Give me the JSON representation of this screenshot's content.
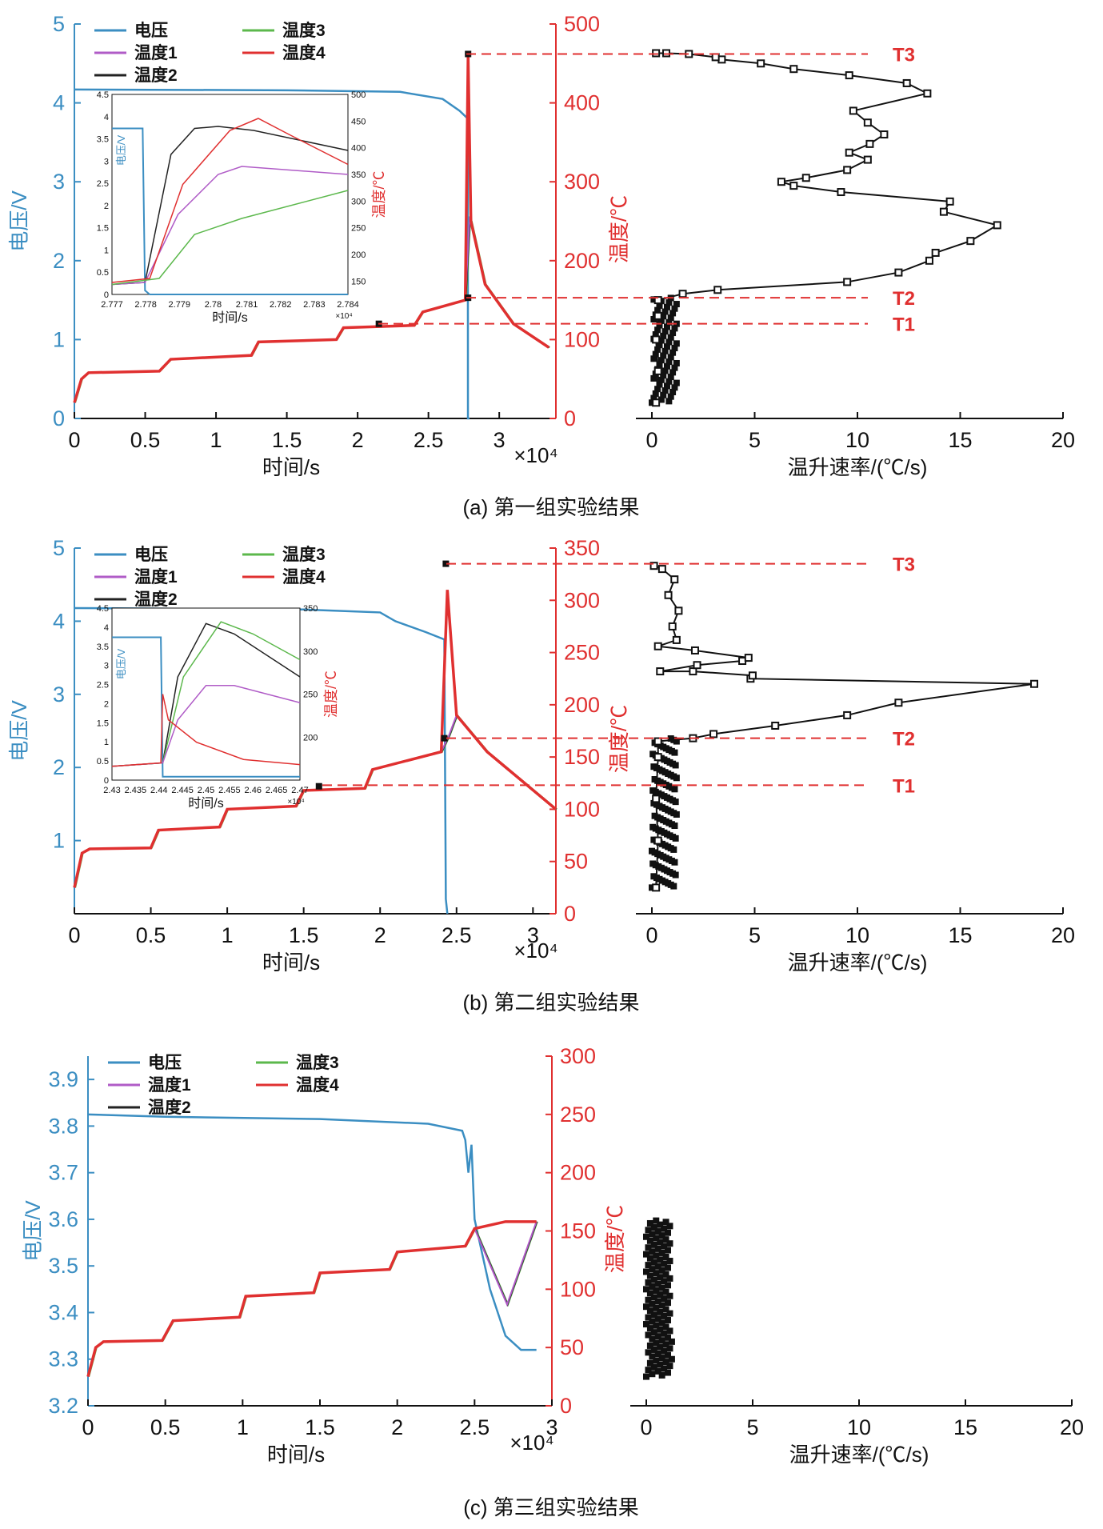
{
  "colors": {
    "voltage": "#3b8ec2",
    "t1": "#b05cc7",
    "t2": "#222222",
    "t3": "#5cb84c",
    "t4": "#e03030",
    "rate": "#111111",
    "threshold": "#e03030"
  },
  "chart_data": [
    {
      "id": "a",
      "type": "line",
      "caption": "(a) 第一组实验结果",
      "xlabel": "时间/s",
      "x_multiplier": "×10⁴",
      "ylabel_left": "电压/V",
      "ylabel_right": "温度/℃",
      "xlim": [
        0,
        3.4
      ],
      "ylim_left": [
        0,
        5
      ],
      "ylim_right": [
        0,
        500
      ],
      "xticks": [
        "0",
        "0.5",
        "1",
        "1.5",
        "2",
        "2.5",
        "3"
      ],
      "yticks_left": [
        "0",
        "1",
        "2",
        "3",
        "4",
        "5"
      ],
      "yticks_right": [
        "0",
        "100",
        "200",
        "300",
        "400",
        "500"
      ],
      "legend": [
        "电压",
        "温度3",
        "温度1",
        "温度4",
        "温度2"
      ],
      "series": [
        {
          "name": "电压",
          "axis": "left",
          "points": [
            [
              0,
              4.17
            ],
            [
              1.5,
              4.16
            ],
            [
              2.3,
              4.14
            ],
            [
              2.6,
              4.05
            ],
            [
              2.72,
              3.9
            ],
            [
              2.778,
              3.8
            ],
            [
              2.779,
              0
            ],
            [
              2.79,
              0
            ]
          ]
        },
        {
          "name": "温度4",
          "axis": "right",
          "points": [
            [
              0,
              20
            ],
            [
              0.05,
              50
            ],
            [
              0.1,
              58
            ],
            [
              0.6,
              60
            ],
            [
              0.68,
              75
            ],
            [
              1.25,
              80
            ],
            [
              1.3,
              97
            ],
            [
              1.85,
              100
            ],
            [
              1.9,
              115
            ],
            [
              2.4,
              118
            ],
            [
              2.46,
              135
            ],
            [
              2.76,
              150
            ],
            [
              2.78,
              460
            ],
            [
              2.8,
              250
            ],
            [
              2.9,
              170
            ],
            [
              3.1,
              120
            ],
            [
              3.35,
              90
            ]
          ]
        }
      ],
      "markers_right": [
        [
          2.78,
          462
        ],
        [
          2.78,
          153
        ],
        [
          2.15,
          120
        ]
      ],
      "inset": {
        "xlabel": "时间/s",
        "ylabel_left": "电压/V",
        "ylabel_right": "温度/℃",
        "xlim": [
          2.777,
          2.784
        ],
        "ylim_left": [
          0,
          4.5
        ],
        "ylim_right": [
          125,
          500
        ],
        "xticks": [
          "2.777",
          "2.778",
          "2.779",
          "2.78",
          "2.781",
          "2.782",
          "2.783",
          "2.784"
        ],
        "yticks_left": [
          "0",
          "0.5",
          "1",
          "1.5",
          "2",
          "2.5",
          "3",
          "3.5",
          "4",
          "4.5"
        ],
        "yticks_right": [
          "150",
          "200",
          "250",
          "300",
          "350",
          "400",
          "450",
          "500"
        ],
        "x_multiplier": "×10⁴"
      },
      "rate": {
        "xlabel": "温升速率/(℃/s)",
        "xlim": [
          0,
          20
        ],
        "xticks": [
          "0",
          "5",
          "10",
          "15",
          "20"
        ],
        "points": [
          [
            0.2,
            20
          ],
          [
            0.3,
            60
          ],
          [
            0.2,
            100
          ],
          [
            0.3,
            130
          ],
          [
            0.3,
            150
          ],
          [
            1.5,
            158
          ],
          [
            3.2,
            163
          ],
          [
            9.5,
            173
          ],
          [
            12,
            185
          ],
          [
            13.5,
            200
          ],
          [
            13.8,
            210
          ],
          [
            15.5,
            225
          ],
          [
            16.8,
            245
          ],
          [
            14.2,
            262
          ],
          [
            14.5,
            275
          ],
          [
            9.2,
            287
          ],
          [
            6.9,
            295
          ],
          [
            6.3,
            300
          ],
          [
            7.5,
            305
          ],
          [
            9.5,
            315
          ],
          [
            10.5,
            328
          ],
          [
            9.6,
            337
          ],
          [
            10.6,
            348
          ],
          [
            11.3,
            360
          ],
          [
            10.5,
            375
          ],
          [
            9.8,
            390
          ],
          [
            13.4,
            412
          ],
          [
            12.4,
            425
          ],
          [
            9.6,
            435
          ],
          [
            6.9,
            443
          ],
          [
            5.3,
            450
          ],
          [
            3.4,
            455
          ],
          [
            3.1,
            458
          ],
          [
            1.8,
            462
          ],
          [
            0.7,
            463
          ],
          [
            0.2,
            463
          ]
        ]
      },
      "thresholds": [
        {
          "label": "T3",
          "value": 462
        },
        {
          "label": "T2",
          "value": 153
        },
        {
          "label": "T1",
          "value": 120
        }
      ]
    },
    {
      "id": "b",
      "type": "line",
      "caption": "(b) 第二组实验结果",
      "xlabel": "时间/s",
      "x_multiplier": "×10⁴",
      "ylabel_left": "电压/V",
      "ylabel_right": "温度/℃",
      "xlim": [
        0,
        3.15
      ],
      "ylim_left": [
        0,
        5
      ],
      "ylim_right": [
        0,
        350
      ],
      "xticks": [
        "0",
        "0.5",
        "1",
        "1.5",
        "2",
        "2.5",
        "3"
      ],
      "yticks_left": [
        "1",
        "2",
        "3",
        "4",
        "5"
      ],
      "yticks_right": [
        "0",
        "50",
        "100",
        "150",
        "200",
        "250",
        "300",
        "350"
      ],
      "legend": [
        "电压",
        "温度3",
        "温度1",
        "温度4",
        "温度2"
      ],
      "series": [
        {
          "name": "电压",
          "axis": "left",
          "points": [
            [
              0,
              4.18
            ],
            [
              1.5,
              4.16
            ],
            [
              2.0,
              4.12
            ],
            [
              2.1,
              4.0
            ],
            [
              2.3,
              3.85
            ],
            [
              2.42,
              3.75
            ],
            [
              2.43,
              0.2
            ],
            [
              2.44,
              0
            ]
          ]
        },
        {
          "name": "温度4",
          "axis": "right",
          "points": [
            [
              0,
              25
            ],
            [
              0.05,
              58
            ],
            [
              0.1,
              62
            ],
            [
              0.5,
              63
            ],
            [
              0.55,
              80
            ],
            [
              0.95,
              83
            ],
            [
              1.0,
              100
            ],
            [
              1.45,
              103
            ],
            [
              1.5,
              118
            ],
            [
              1.9,
              120
            ],
            [
              1.95,
              138
            ],
            [
              2.4,
              155
            ],
            [
              2.44,
              310
            ],
            [
              2.5,
              190
            ],
            [
              2.7,
              155
            ],
            [
              3.15,
              100
            ]
          ]
        }
      ],
      "markers_right": [
        [
          2.43,
          335
        ],
        [
          2.42,
          168
        ],
        [
          1.6,
          122
        ]
      ],
      "inset": {
        "xlabel": "时间/s",
        "ylabel_left": "电压/V",
        "ylabel_right": "温度/℃",
        "xlim": [
          2.43,
          2.47
        ],
        "ylim_left": [
          0,
          4.5
        ],
        "ylim_right": [
          150,
          350
        ],
        "xticks": [
          "2.43",
          "2.435",
          "2.44",
          "2.445",
          "2.45",
          "2.455",
          "2.46",
          "2.465",
          "2.47"
        ],
        "yticks_left": [
          "0",
          "0.5",
          "1",
          "1.5",
          "2",
          "2.5",
          "3",
          "3.5",
          "4",
          "4.5"
        ],
        "yticks_right": [
          "200",
          "250",
          "300",
          "350"
        ],
        "x_multiplier": "×10⁴"
      },
      "rate": {
        "xlabel": "温升速率/(℃/s)",
        "xlim": [
          0,
          20
        ],
        "xticks": [
          "0",
          "5",
          "10",
          "15",
          "20"
        ],
        "points": [
          [
            0.2,
            25
          ],
          [
            0.3,
            70
          ],
          [
            0.2,
            110
          ],
          [
            0.3,
            150
          ],
          [
            0.3,
            165
          ],
          [
            2,
            168
          ],
          [
            3,
            172
          ],
          [
            6,
            180
          ],
          [
            9.5,
            190
          ],
          [
            12,
            202
          ],
          [
            18.6,
            220
          ],
          [
            4.8,
            225
          ],
          [
            4.9,
            228
          ],
          [
            2,
            232
          ],
          [
            0.4,
            232
          ],
          [
            2.2,
            238
          ],
          [
            4.4,
            242
          ],
          [
            4.7,
            245
          ],
          [
            2.1,
            252
          ],
          [
            0.3,
            256
          ],
          [
            1.2,
            262
          ],
          [
            1.0,
            275
          ],
          [
            1.3,
            290
          ],
          [
            0.8,
            305
          ],
          [
            1.1,
            320
          ],
          [
            0.5,
            330
          ],
          [
            0.1,
            333
          ]
        ]
      },
      "thresholds": [
        {
          "label": "T3",
          "value": 335
        },
        {
          "label": "T2",
          "value": 168
        },
        {
          "label": "T1",
          "value": 123
        }
      ]
    },
    {
      "id": "c",
      "type": "line",
      "caption": "(c) 第三组实验结果",
      "xlabel": "时间/s",
      "x_multiplier": "×10⁴",
      "ylabel_left": "电压/V",
      "ylabel_right": "温度/℃",
      "xlim": [
        0,
        3
      ],
      "ylim_left": [
        3.2,
        3.95
      ],
      "ylim_right": [
        0,
        300
      ],
      "xticks": [
        "0",
        "0.5",
        "1",
        "1.5",
        "2",
        "2.5",
        "3"
      ],
      "yticks_left": [
        "3.2",
        "3.3",
        "3.4",
        "3.5",
        "3.6",
        "3.7",
        "3.8",
        "3.9"
      ],
      "yticks_right": [
        "0",
        "50",
        "100",
        "150",
        "200",
        "250",
        "300"
      ],
      "legend": [
        "电压",
        "温度3",
        "温度1",
        "温度4",
        "温度2"
      ],
      "series": [
        {
          "name": "电压",
          "axis": "left",
          "points": [
            [
              0,
              3.825
            ],
            [
              0.5,
              3.82
            ],
            [
              1.5,
              3.815
            ],
            [
              2.2,
              3.805
            ],
            [
              2.42,
              3.79
            ],
            [
              2.44,
              3.77
            ],
            [
              2.46,
              3.7
            ],
            [
              2.48,
              3.76
            ],
            [
              2.5,
              3.6
            ],
            [
              2.6,
              3.45
            ],
            [
              2.7,
              3.35
            ],
            [
              2.8,
              3.32
            ],
            [
              2.9,
              3.32
            ]
          ]
        },
        {
          "name": "温度4",
          "axis": "right",
          "points": [
            [
              0,
              25
            ],
            [
              0.05,
              50
            ],
            [
              0.1,
              55
            ],
            [
              0.48,
              56
            ],
            [
              0.55,
              73
            ],
            [
              0.98,
              76
            ],
            [
              1.02,
              94
            ],
            [
              1.46,
              97
            ],
            [
              1.5,
              114
            ],
            [
              1.95,
              117
            ],
            [
              2.0,
              132
            ],
            [
              2.44,
              137
            ],
            [
              2.5,
              152
            ],
            [
              2.7,
              158
            ],
            [
              2.9,
              158
            ]
          ]
        }
      ],
      "rate": {
        "xlabel": "温升速率/(℃/s)",
        "xlim": [
          0,
          20
        ],
        "xticks": [
          "0",
          "5",
          "10",
          "15",
          "20"
        ],
        "points": [
          [
            0.2,
            25
          ],
          [
            0.4,
            60
          ],
          [
            0.1,
            100
          ],
          [
            0.4,
            130
          ],
          [
            0.2,
            160
          ]
        ]
      }
    }
  ]
}
